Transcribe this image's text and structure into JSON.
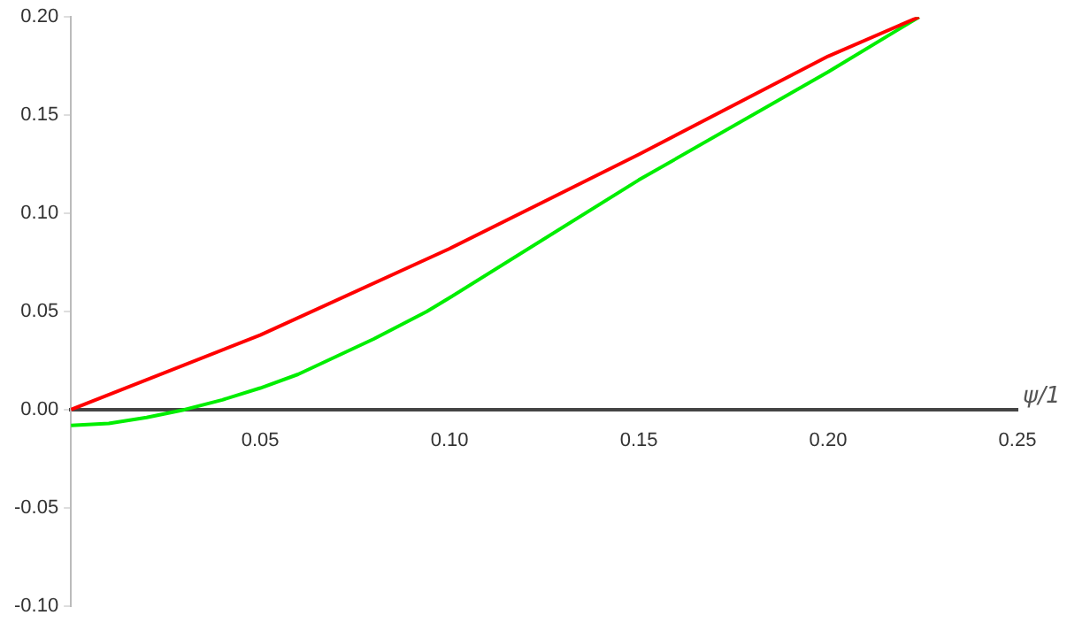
{
  "chart_data": {
    "type": "line",
    "xlabel": "ψ/1",
    "xlim": [
      0,
      0.25
    ],
    "ylim": [
      -0.1,
      0.2
    ],
    "xticks": [
      {
        "value": 0.05,
        "label": "0.05"
      },
      {
        "value": 0.1,
        "label": "0.10"
      },
      {
        "value": 0.15,
        "label": "0.15"
      },
      {
        "value": 0.2,
        "label": "0.20"
      },
      {
        "value": 0.25,
        "label": "0.25"
      }
    ],
    "yticks": [
      {
        "value": -0.1,
        "label": "-0.10"
      },
      {
        "value": -0.05,
        "label": "-0.05"
      },
      {
        "value": 0,
        "label": "0.00"
      },
      {
        "value": 0.05,
        "label": "0.05"
      },
      {
        "value": 0.1,
        "label": "0.10"
      },
      {
        "value": 0.15,
        "label": "0.15"
      },
      {
        "value": 0.2,
        "label": "0.20"
      }
    ],
    "grid": false,
    "legend": false,
    "marker": "none",
    "line_style": "solid",
    "series": [
      {
        "color": "#ff0000",
        "x": [
          0,
          0.05,
          0.1,
          0.15,
          0.2,
          0.224
        ],
        "values": [
          0,
          0.038,
          0.082,
          0.13,
          0.18,
          0.2
        ]
      },
      {
        "color": "#00ee00",
        "x": [
          0,
          0.01,
          0.02,
          0.03,
          0.04,
          0.05,
          0.06,
          0.07,
          0.08,
          0.094,
          0.1,
          0.15,
          0.2,
          0.224
        ],
        "values": [
          -0.008,
          -0.007,
          -0.004,
          0,
          0.005,
          0.011,
          0.018,
          0.027,
          0.036,
          0.05,
          0.057,
          0.117,
          0.172,
          0.2
        ]
      }
    ]
  }
}
